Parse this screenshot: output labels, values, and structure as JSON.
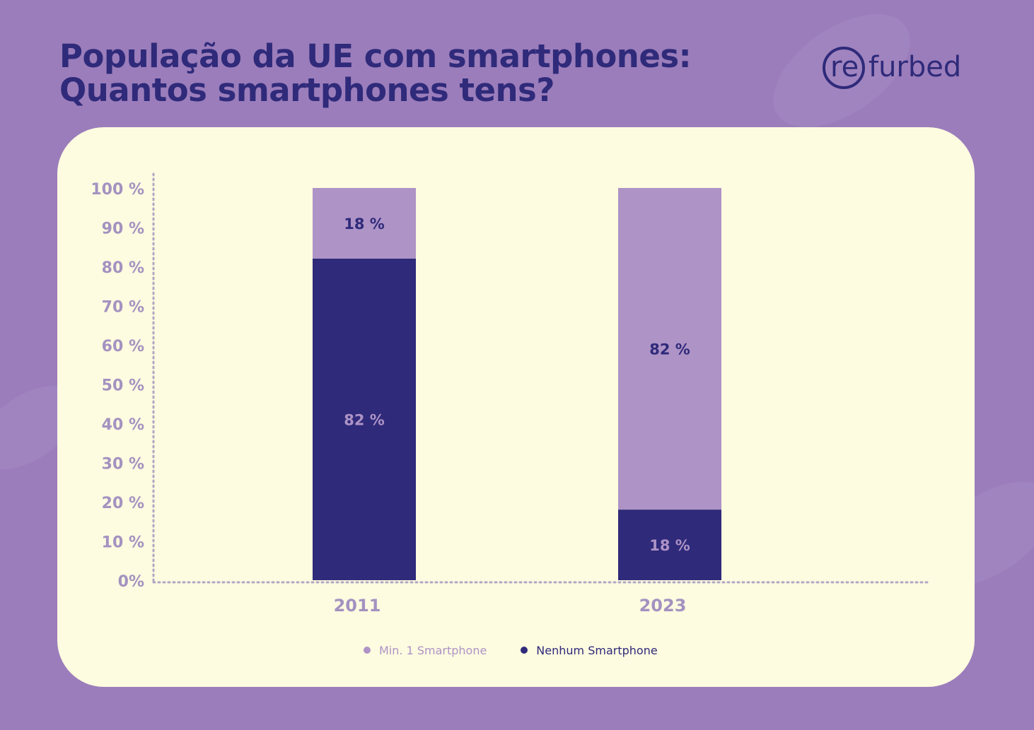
{
  "title": {
    "line1": "População da UE com smartphones:",
    "line2": "Quantos smartphones tens?"
  },
  "logo": {
    "part1": "re",
    "part2": "furbed"
  },
  "colors": {
    "background": "#9b7dbb",
    "card": "#fdfbe0",
    "dark_purple": "#2f2a7a",
    "light_purple": "#ae93c6",
    "axis_text": "#a392c0"
  },
  "chart_data": {
    "type": "bar",
    "stacked": true,
    "categories": [
      "2011",
      "2023"
    ],
    "series": [
      {
        "name": "Nenhum Smartphone",
        "values": [
          82,
          18
        ],
        "labels": [
          "82 %",
          "18 %"
        ],
        "color": "#2f2a7a"
      },
      {
        "name": "Min. 1 Smartphone",
        "values": [
          18,
          82
        ],
        "labels": [
          "18 %",
          "82 %"
        ],
        "color": "#ae93c6"
      }
    ],
    "ylim": [
      0,
      100
    ],
    "yticks": [
      {
        "value": 0,
        "label": "0%"
      },
      {
        "value": 10,
        "label": "10 %"
      },
      {
        "value": 20,
        "label": "20 %"
      },
      {
        "value": 30,
        "label": "30 %"
      },
      {
        "value": 40,
        "label": "40 %"
      },
      {
        "value": 50,
        "label": "50 %"
      },
      {
        "value": 60,
        "label": "60 %"
      },
      {
        "value": 70,
        "label": "70 %"
      },
      {
        "value": 80,
        "label": "80 %"
      },
      {
        "value": 90,
        "label": "90 %"
      },
      {
        "value": 100,
        "label": "100  %"
      }
    ],
    "grid": false,
    "legend": {
      "position": "bottom",
      "items": [
        {
          "label": "Min. 1 Smartphone",
          "color": "#ae93c6"
        },
        {
          "label": "Nenhum Smartphone",
          "color": "#2f2a7a"
        }
      ]
    }
  }
}
